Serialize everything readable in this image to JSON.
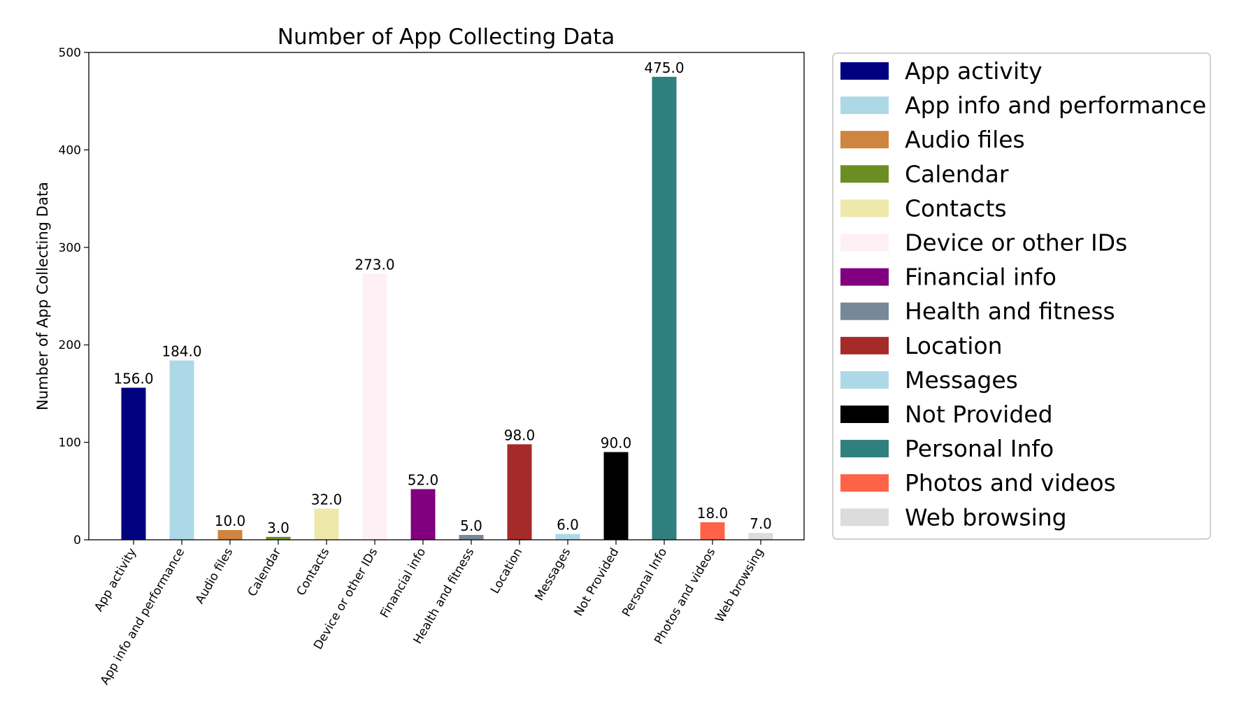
{
  "chart_data": {
    "type": "bar",
    "title": "Number of App Collecting Data",
    "xlabel": "",
    "ylabel": "Number of App Collecting Data",
    "ylim": [
      0,
      500
    ],
    "yticks": [
      0,
      100,
      200,
      300,
      400,
      500
    ],
    "grid": false,
    "legend_position": "outside-right",
    "categories": [
      "App activity",
      "App info and performance",
      "Audio files",
      "Calendar",
      "Contacts",
      "Device or other IDs",
      "Financial info",
      "Health and fitness",
      "Location",
      "Messages",
      "Not Provided",
      "Personal Info",
      "Photos and videos",
      "Web browsing"
    ],
    "values": [
      156,
      184,
      10,
      3,
      32,
      273,
      52,
      5,
      98,
      6,
      90,
      475,
      18,
      7
    ],
    "value_labels": [
      "156.0",
      "184.0",
      "10.0",
      "3.0",
      "32.0",
      "273.0",
      "52.0",
      "5.0",
      "98.0",
      "6.0",
      "90.0",
      "475.0",
      "18.0",
      "7.0"
    ],
    "colors": [
      "#000080",
      "#add8e6",
      "#cd853f",
      "#6b8e23",
      "#eee8aa",
      "#fff0f5",
      "#800080",
      "#778899",
      "#a52a2a",
      "#add8e6",
      "#000000",
      "#2f7f7f",
      "#ff6347",
      "#dcdcdc"
    ],
    "legend": [
      "App activity",
      "App info and performance",
      "Audio files",
      "Calendar",
      "Contacts",
      "Device or other IDs",
      "Financial info",
      "Health and fitness",
      "Location",
      "Messages",
      "Not Provided",
      "Personal Info",
      "Photos and videos",
      "Web browsing"
    ]
  }
}
